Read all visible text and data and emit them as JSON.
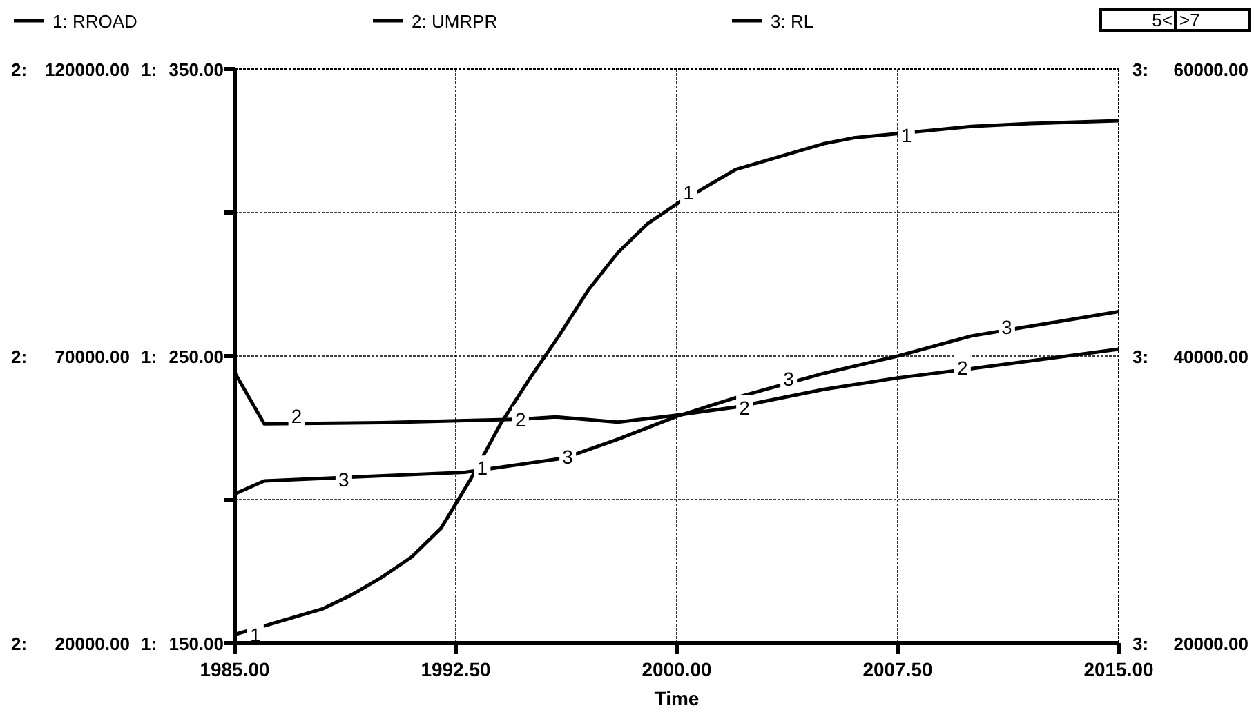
{
  "chart_data": {
    "type": "line",
    "xlabel": "Time",
    "legend": "top",
    "grid": true,
    "xlim": [
      1985,
      2015
    ],
    "xticks": [
      {
        "value": 1985,
        "label": "1985.00"
      },
      {
        "value": 1992.5,
        "label": "1992.50"
      },
      {
        "value": 2000,
        "label": "2000.00"
      },
      {
        "value": 2007.5,
        "label": "2007.50"
      },
      {
        "value": 2015,
        "label": "2015.00"
      }
    ],
    "ylabel": "1:",
    "y2label": "2:",
    "y3label": "3:",
    "ylim": [
      150,
      350
    ],
    "yticks": [
      {
        "value": 150,
        "label": "150.00"
      },
      {
        "value": 200,
        "label": null
      },
      {
        "value": 250,
        "label": "250.00"
      },
      {
        "value": 300,
        "label": null
      },
      {
        "value": 350,
        "label": "350.00"
      }
    ],
    "y2lim": [
      20000,
      120000
    ],
    "y2ticks": [
      {
        "value": 20000,
        "label": "20000.00"
      },
      {
        "value": 70000,
        "label": "70000.00"
      },
      {
        "value": 120000,
        "label": "120000.00"
      }
    ],
    "y3lim": [
      20000,
      60000
    ],
    "y3ticks": [
      {
        "value": 20000,
        "label": "20000.00"
      },
      {
        "value": 40000,
        "label": "40000.00"
      },
      {
        "value": 60000,
        "label": "60000.00"
      }
    ],
    "annotations": [
      "5<",
      ">7",
      {
        "text": "1",
        "x": 1985.7,
        "y": 153
      },
      {
        "text": "1",
        "x": 1993.4,
        "y": 211
      },
      {
        "text": "1",
        "x": 2000.4,
        "y": 307
      },
      {
        "text": "1",
        "x": 2007.8,
        "y": 327
      },
      {
        "text": "2",
        "x": 1987.1,
        "y": 229
      },
      {
        "text": "2",
        "x": 1994.7,
        "y": 228
      },
      {
        "text": "2",
        "x": 2002.3,
        "y": 232
      },
      {
        "text": "2",
        "x": 2009.7,
        "y": 246
      },
      {
        "text": "3",
        "x": 1988.7,
        "y": 207
      },
      {
        "text": "3",
        "x": 1996.3,
        "y": 215
      },
      {
        "text": "3",
        "x": 2003.8,
        "y": 242
      },
      {
        "text": "3",
        "x": 2011.2,
        "y": 260
      }
    ],
    "series": [
      {
        "name": "1: RROAD",
        "color": "#000000",
        "x": [
          1985,
          1986,
          1987,
          1988,
          1989,
          1990,
          1991,
          1992,
          1993,
          1994,
          1995,
          1996,
          1997,
          1998,
          1999,
          2000,
          2001,
          2002,
          2003,
          2004,
          2005,
          2006,
          2007,
          2008,
          2010,
          2012,
          2015
        ],
        "values": [
          153,
          156,
          159,
          162,
          167,
          173,
          180,
          190,
          207,
          226,
          242,
          257,
          273,
          286,
          296,
          303,
          309,
          315,
          318,
          321,
          324,
          326,
          327,
          328,
          330,
          331,
          332
        ]
      },
      {
        "name": "2: UMRPR",
        "color": "#000000",
        "axis": "y2",
        "x": [
          1985,
          1986,
          1990,
          1994.7,
          1995.9,
          1998,
          2000,
          2002,
          2005,
          2007.5,
          2010,
          2015
        ],
        "values": [
          67100,
          58200,
          58400,
          59000,
          59400,
          58500,
          59700,
          61100,
          64200,
          66200,
          67800,
          71200
        ]
      },
      {
        "name": "3: RL",
        "color": "#000000",
        "axis": "y3",
        "x": [
          1985,
          1986,
          1992.8,
          1996.2,
          1998,
          2000,
          2002,
          2005,
          2007.5,
          2010,
          2015
        ],
        "values": [
          30400,
          31300,
          31900,
          32900,
          34200,
          35800,
          37100,
          38800,
          40000,
          41400,
          43100
        ]
      }
    ]
  }
}
